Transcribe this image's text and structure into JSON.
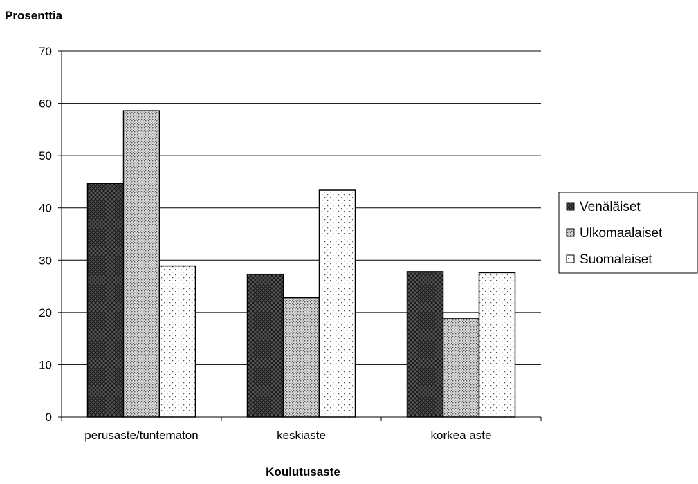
{
  "chart_data": {
    "type": "bar",
    "ylabel": "Prosenttia",
    "xlabel": "Koulutusaste",
    "categories": [
      "perusaste/tuntematon",
      "keskiaste",
      "korkea aste"
    ],
    "series": [
      {
        "name": "Venäläiset",
        "values": [
          44.7,
          27.3,
          27.8
        ],
        "pattern": "crosshatch-dark"
      },
      {
        "name": "Ulkomaalaiset",
        "values": [
          58.6,
          22.8,
          18.8
        ],
        "pattern": "fine-dots-dense"
      },
      {
        "name": "Suomalaiset",
        "values": [
          28.9,
          43.4,
          27.6
        ],
        "pattern": "sparse-dots"
      }
    ],
    "ylim": [
      0,
      70
    ],
    "yticks": [
      0,
      10,
      20,
      30,
      40,
      50,
      60,
      70
    ],
    "grid": true,
    "legend_position": "right"
  }
}
